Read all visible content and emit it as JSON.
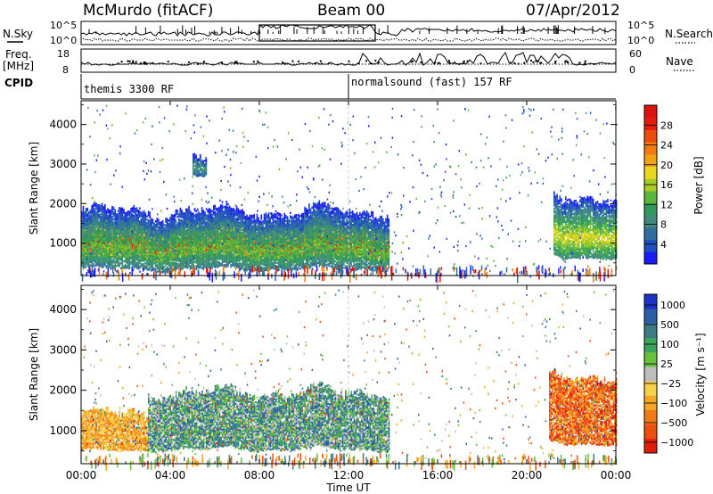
{
  "header": {
    "station": "McMurdo (fitACF)",
    "beam": "Beam 00",
    "date": "07/Apr/2012"
  },
  "top_strip": {
    "left_label": "N.Sky",
    "right_label": "N.Search",
    "left_ticks": [
      "10^5",
      "10^0"
    ],
    "right_ticks": [
      "10^5",
      "10^0"
    ]
  },
  "freq_strip": {
    "left_label_line1": "Freq.",
    "left_label_line2": "[MHz]",
    "right_label": "Nave",
    "left_ticks": [
      "18",
      "8"
    ],
    "right_ticks": [
      "60",
      "0"
    ]
  },
  "cpid": {
    "label": "CPID",
    "programs": [
      {
        "name": "themis 3300 RF",
        "start_hour": 0
      },
      {
        "name": "normalsound (fast) 157 RF",
        "start_hour": 12
      }
    ]
  },
  "x_axis": {
    "label": "Time UT",
    "ticks": [
      "00:00",
      "04:00",
      "08:00",
      "12:00",
      "16:00",
      "20:00",
      "00:00"
    ],
    "range_hours": [
      0,
      24
    ]
  },
  "chart_data": [
    {
      "type": "heatmap",
      "panel": "power",
      "ylabel": "Slant Range [km]",
      "yticks": [
        1000,
        2000,
        3000,
        4000
      ],
      "ylim": [
        180,
        4600
      ],
      "colorbar": {
        "label": "Power [dB]",
        "ticks": [
          4,
          8,
          12,
          16,
          20,
          24,
          28
        ],
        "range": [
          0,
          32
        ],
        "colors": [
          "#1a1aff",
          "#1f4fbf",
          "#2e6fa0",
          "#3f8a7a",
          "#2f9a5a",
          "#5bb83a",
          "#a9c923",
          "#ecd81a",
          "#f3a20f",
          "#f27a0e",
          "#ee4a0c",
          "#e71d0b",
          "#e01010"
        ]
      },
      "regions": [
        {
          "t0": 0.0,
          "t1": 13.8,
          "rmin": 550,
          "rmax": 1500,
          "peak": 30
        },
        {
          "t0": 0.0,
          "t1": 13.8,
          "rmin": 300,
          "rmax": 1750,
          "peak": 12
        },
        {
          "t0": 21.2,
          "t1": 24.0,
          "rmin": 600,
          "rmax": 2100,
          "peak": 16
        },
        {
          "t0": 5.0,
          "t1": 5.6,
          "rmin": 2650,
          "rmax": 3100,
          "peak": 8
        }
      ]
    },
    {
      "type": "heatmap",
      "panel": "velocity",
      "ylabel": "Slant Range [km]",
      "yticks": [
        1000,
        2000,
        3000,
        4000
      ],
      "ylim": [
        180,
        4600
      ],
      "colorbar": {
        "label": "Velocity [m s⁻¹]",
        "ticks": [
          "1000",
          "500",
          "100",
          "25",
          "−25",
          "−100",
          "−500",
          "−1000"
        ],
        "colors": [
          "#1c32c8",
          "#2a5fa8",
          "#3b7c84",
          "#3aa45a",
          "#67c23b",
          "#bdbdbd",
          "#f5d24a",
          "#f5a623",
          "#f27b15",
          "#ee4e0e",
          "#e21d0b"
        ]
      },
      "regions": [
        {
          "t0": 0.0,
          "t1": 3.0,
          "rmin": 450,
          "rmax": 1350,
          "v": -150
        },
        {
          "t0": 3.0,
          "t1": 13.8,
          "rmin": 500,
          "rmax": 1900,
          "v": 200
        },
        {
          "t0": 21.0,
          "t1": 24.0,
          "rmin": 650,
          "rmax": 2300,
          "v": -300
        }
      ]
    }
  ]
}
